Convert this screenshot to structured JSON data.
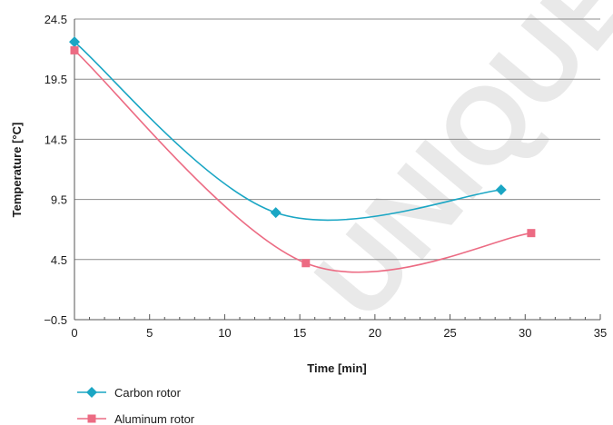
{
  "watermark": "UNIQUE D",
  "chart_data": {
    "type": "line",
    "title": "",
    "xlabel": "Time [min]",
    "ylabel": "Temperature [°C]",
    "xlim": [
      0,
      35
    ],
    "ylim": [
      -0.5,
      24.5
    ],
    "x_ticks": [
      0,
      5,
      10,
      15,
      20,
      25,
      30,
      35
    ],
    "y_ticks": [
      -0.5,
      4.5,
      9.5,
      14.5,
      19.5,
      24.5
    ],
    "grid": "horizontal",
    "legend_position": "bottom-left",
    "series": [
      {
        "name": "Carbon rotor",
        "color": "#1aa6c4",
        "marker": "diamond",
        "smooth": true,
        "points": [
          [
            0,
            22.6
          ],
          [
            13.4,
            8.4
          ],
          [
            28.4,
            10.3
          ]
        ]
      },
      {
        "name": "Aluminum rotor",
        "color": "#ec6b83",
        "marker": "square",
        "smooth": true,
        "points": [
          [
            0,
            21.9
          ],
          [
            15.4,
            4.2
          ],
          [
            30.4,
            6.7
          ]
        ]
      }
    ]
  }
}
